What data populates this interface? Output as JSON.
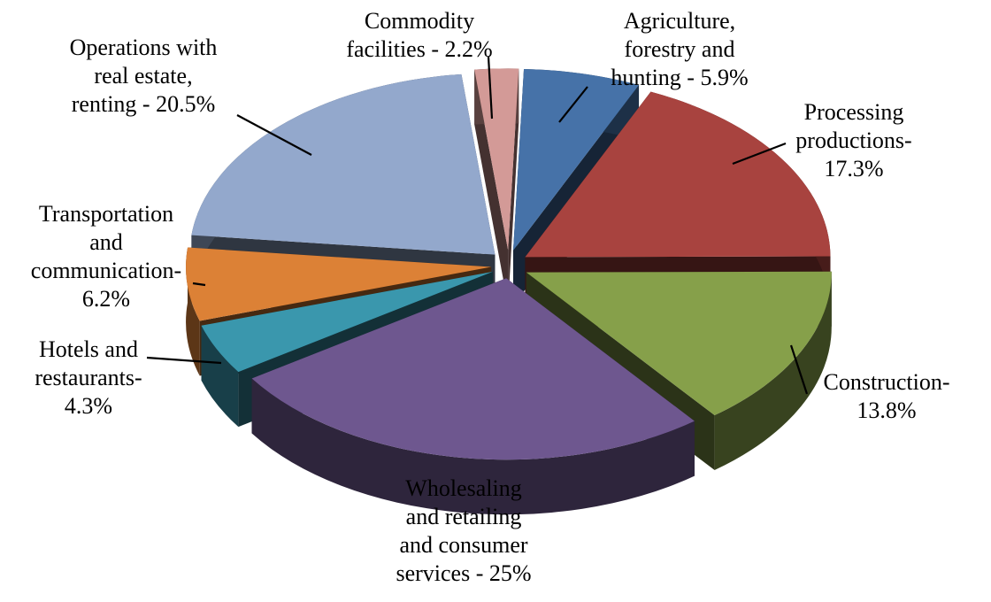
{
  "chart_data": {
    "type": "pie",
    "title": "",
    "style": "3d-exploded",
    "slices": [
      {
        "label": "Agriculture, forestry and hunting - 5.9%",
        "lines": [
          "Agriculture,",
          "forestry and",
          "hunting - 5.9%"
        ],
        "value": 5.9,
        "color": "#4672a8"
      },
      {
        "label": "Processing productions-17.3%",
        "lines": [
          "Processing",
          "productions-",
          "17.3%"
        ],
        "value": 17.3,
        "color": "#a8433f"
      },
      {
        "label": "Construction-13.8%",
        "lines": [
          "Construction-",
          "13.8%"
        ],
        "value": 13.8,
        "color": "#86a04a"
      },
      {
        "label": "Wholesaling and retailing and consumer services - 25%",
        "lines": [
          "Wholesaling",
          "and retailing",
          "and consumer",
          "services - 25%"
        ],
        "value": 25,
        "color": "#6e578f"
      },
      {
        "label": "Hotels and restaurants-4.3%",
        "lines": [
          "Hotels and",
          "restaurants-",
          "4.3%"
        ],
        "value": 4.3,
        "color": "#3a97ad"
      },
      {
        "label": "Transportation and communication-6.2%",
        "lines": [
          "Transportation",
          "and",
          "communication-",
          "6.2%"
        ],
        "value": 6.2,
        "color": "#dc8136"
      },
      {
        "label": "Operations with real estate, renting - 20.5%",
        "lines": [
          "Operations with",
          "real estate,",
          "renting - 20.5%"
        ],
        "value": 20.5,
        "color": "#93a8cc"
      },
      {
        "label": "Commodity facilities - 2.2%",
        "lines": [
          "Commodity",
          "facilities - 2.2%"
        ],
        "value": 2.2,
        "color": "#d39a97"
      }
    ]
  }
}
